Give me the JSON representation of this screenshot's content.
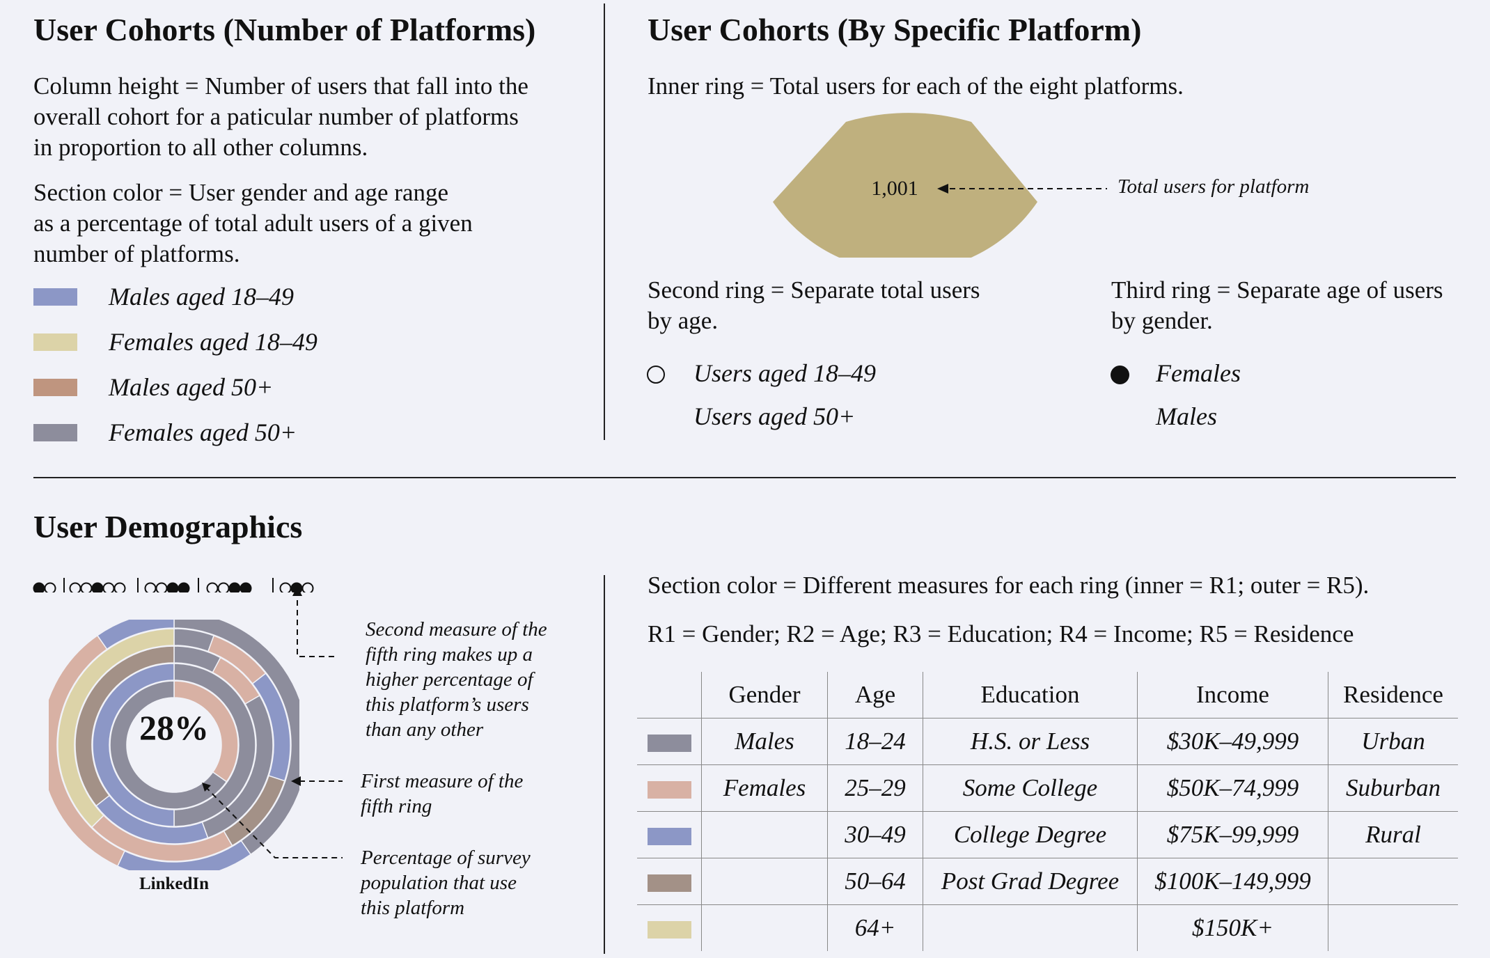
{
  "top_left": {
    "title": "User Cohorts (Number of Platforms)",
    "para1": [
      "Column height = Number of users that fall into the",
      "overall cohort for a paticular number of platforms",
      "in proportion to all other columns."
    ],
    "para2": [
      "Section color = User gender and age range",
      "as a percentage of total adult users of a given",
      "number of platforms."
    ],
    "legend": [
      {
        "label": "Males aged 18–49",
        "color": "#8c97c6"
      },
      {
        "label": "Females aged 18–49",
        "color": "#dcd3a8"
      },
      {
        "label": "Males aged 50+",
        "color": "#bf957f"
      },
      {
        "label": "Females aged 50+",
        "color": "#8d8d9c"
      }
    ]
  },
  "top_right": {
    "title": "User Cohorts (By Specific Platform)",
    "inner_ring_text": "Inner ring = Total users for each of the eight platforms.",
    "wedge_value": "1,001",
    "wedge_color": "#bfb07e",
    "wedge_annotation": "Total users for platform",
    "second_ring": [
      "Second ring = Separate total users",
      "by age."
    ],
    "third_ring": [
      "Third ring = Separate age of users",
      "by gender."
    ],
    "second_legend": [
      "Users aged 18–49",
      "Users aged 50+"
    ],
    "third_legend": [
      "Females",
      "Males"
    ]
  },
  "bottom": {
    "title": "User Demographics",
    "donut_percent": "28%",
    "donut_label": "LinkedIn",
    "annotations": {
      "second_measure": [
        "Second measure of the",
        "fifth ring makes up a",
        "higher percentage of",
        "this platform’s users",
        "than any other"
      ],
      "first_measure": [
        "First measure of the",
        "fifth ring"
      ],
      "percentage": [
        "Percentage of survey",
        "population that use",
        "this platform"
      ]
    },
    "section_color_text": "Section color = Different measures for each ring (inner = R1; outer = R5).",
    "rings_text": "R1 = Gender; R2 = Age; R3 = Education; R4 = Income; R5 = Residence",
    "table": {
      "headers": [
        "Gender",
        "Age",
        "Education",
        "Income",
        "Residence"
      ],
      "swatch_colors": [
        "#8d8d9c",
        "#d8b1a4",
        "#8c97c6",
        "#a39187",
        "#dcd3a8"
      ],
      "rows": [
        [
          "Males",
          "18–24",
          "H.S. or Less",
          "$30K–49,999",
          "Urban"
        ],
        [
          "Females",
          "25–29",
          "Some College",
          "$50K–74,999",
          "Suburban"
        ],
        [
          "",
          "30–49",
          "College Degree",
          "$75K–99,999",
          "Rural"
        ],
        [
          "",
          "50–64",
          "Post Grad Degree",
          "$100K–149,999",
          ""
        ],
        [
          "",
          "64+",
          "",
          "$150K+",
          ""
        ]
      ]
    }
  }
}
